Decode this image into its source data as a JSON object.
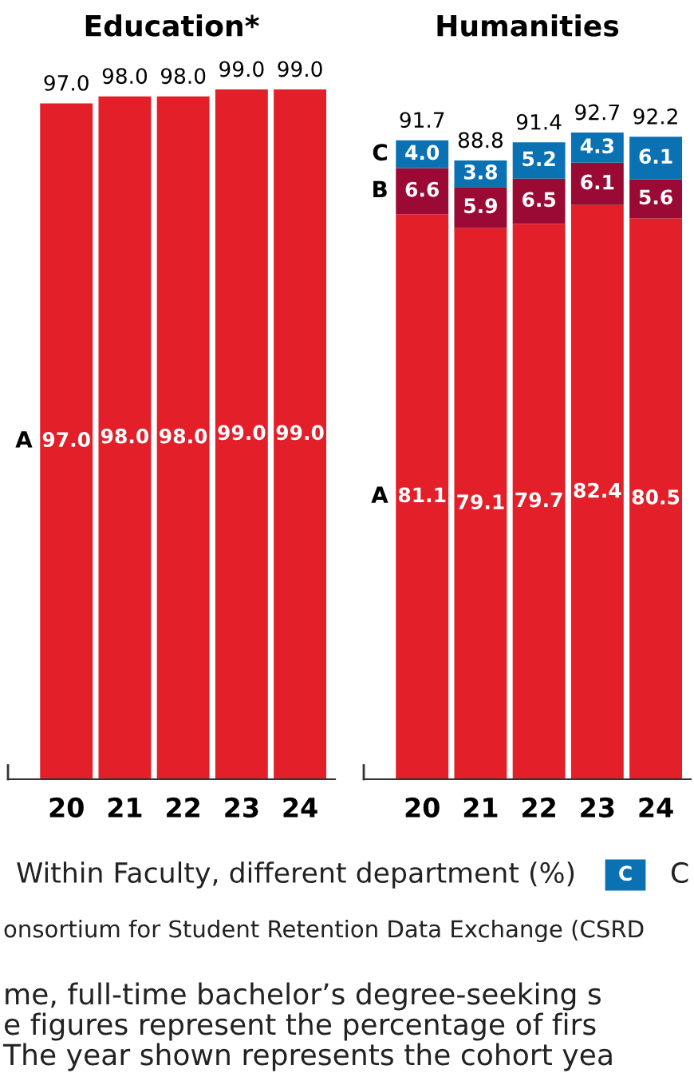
{
  "chart_data": [
    {
      "type": "bar",
      "title": "Education*",
      "stacked": true,
      "categories": [
        "20",
        "21",
        "22",
        "23",
        "24"
      ],
      "tick_labels": "x",
      "grid": false,
      "series": [
        {
          "name": "A",
          "color": "#e3202a",
          "values": [
            97.0,
            98.0,
            98.0,
            99.0,
            99.0
          ],
          "value_labels": [
            "97.0",
            "98.0",
            "98.0",
            "99.0",
            "99.0"
          ]
        }
      ],
      "totals": [
        "97.0",
        "98.0",
        "98.0",
        "99.0",
        "99.0"
      ],
      "annotations": [
        "Within Faculty, different department (%)",
        "C",
        "onsortium for Student Retention Data Exchange (CSRD",
        "me, full-time bachelor’s degree-seeking s",
        "e figures represent the percentage of firs",
        "The year shown represents the cohort yea"
      ]
    },
    {
      "type": "bar",
      "title": "Humanities",
      "stacked": true,
      "categories": [
        "20",
        "21",
        "22",
        "23",
        "24"
      ],
      "tick_labels": "x",
      "grid": false,
      "series": [
        {
          "name": "A",
          "color": "#e3202a",
          "values": [
            81.1,
            79.1,
            79.7,
            82.4,
            80.5
          ],
          "value_labels": [
            "81.1",
            "79.1",
            "79.7",
            "82.4",
            "80.5"
          ]
        },
        {
          "name": "B",
          "color": "#9a0a35",
          "values": [
            6.6,
            5.9,
            6.5,
            6.1,
            5.6
          ],
          "value_labels": [
            "6.6",
            "5.9",
            "6.5",
            "6.1",
            "5.6"
          ]
        },
        {
          "name": "C",
          "color": "#0a72b3",
          "values": [
            4.0,
            3.8,
            5.2,
            4.3,
            6.1
          ],
          "value_labels": [
            "4.0",
            "3.8",
            "5.2",
            "4.3",
            "6.1"
          ]
        }
      ],
      "totals": [
        "91.7",
        "88.8",
        "91.4",
        "92.7",
        "92.2"
      ]
    }
  ]
}
